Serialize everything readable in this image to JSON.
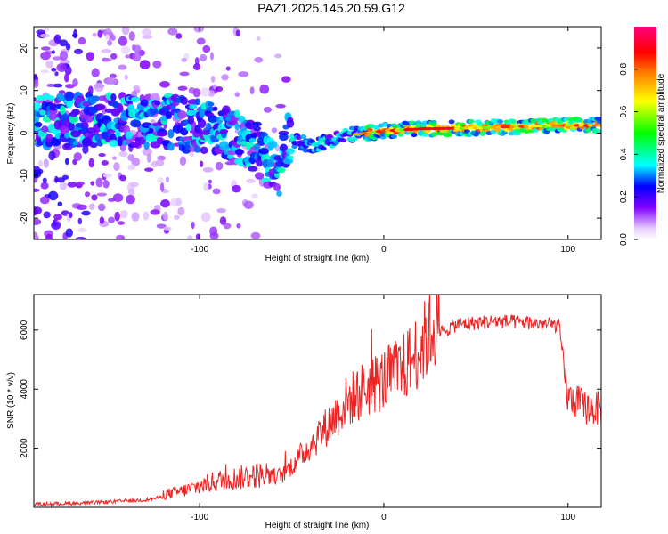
{
  "figure_title": "PAZ1.2025.145.20.59.G12",
  "chart_data": [
    {
      "type": "heatmap",
      "xlabel": "Height of straight line (km)",
      "ylabel": "Frequency (Hz)",
      "xlim": [
        -190,
        118
      ],
      "ylim": [
        -25,
        25
      ],
      "x_ticks": [
        -100,
        0,
        100
      ],
      "y_ticks": [
        -20,
        -10,
        0,
        10,
        20
      ],
      "colorbar": {
        "label": "Normalized spectral amplitude",
        "range": [
          0,
          1
        ],
        "ticks": [
          "0.0",
          "0.2",
          "0.4",
          "0.6",
          "0.8"
        ],
        "colors": [
          "#ffffff",
          "#e8d0ff",
          "#8000ff",
          "#0000ff",
          "#00ffff",
          "#00ff00",
          "#ffff00",
          "#ff8000",
          "#ff0000",
          "#ff0080"
        ]
      },
      "ridge": [
        {
          "x": -120,
          "y": 3.0
        },
        {
          "x": -90,
          "y": 1.0
        },
        {
          "x": -70,
          "y": -3.0
        },
        {
          "x": -57,
          "y": -10.0
        },
        {
          "x": -52,
          "y": -1.0
        },
        {
          "x": -40,
          "y": -3.0
        },
        {
          "x": -20,
          "y": -0.5
        },
        {
          "x": 0,
          "y": 0.5
        },
        {
          "x": 20,
          "y": 1.0
        },
        {
          "x": 50,
          "y": 1.2
        },
        {
          "x": 80,
          "y": 1.6
        },
        {
          "x": 100,
          "y": 1.8
        },
        {
          "x": 118,
          "y": 1.8
        }
      ]
    },
    {
      "type": "line",
      "xlabel": "Height of straight line (km)",
      "ylabel": "SNR (10 * v/v)",
      "xlim": [
        -190,
        118
      ],
      "ylim": [
        0,
        7200
      ],
      "x_ticks": [
        -100,
        0,
        100
      ],
      "y_ticks": [
        2000,
        4000,
        6000
      ],
      "series": [
        {
          "color": "#ee2222",
          "trend": [
            {
              "x": -190,
              "y": 100
            },
            {
              "x": -160,
              "y": 150
            },
            {
              "x": -130,
              "y": 250
            },
            {
              "x": -110,
              "y": 450
            },
            {
              "x": -90,
              "y": 750
            },
            {
              "x": -70,
              "y": 900
            },
            {
              "x": -55,
              "y": 1000
            },
            {
              "x": -42,
              "y": 1800
            },
            {
              "x": -30,
              "y": 2600
            },
            {
              "x": -20,
              "y": 3300
            },
            {
              "x": -10,
              "y": 3700
            },
            {
              "x": 0,
              "y": 4000
            },
            {
              "x": 10,
              "y": 4300
            },
            {
              "x": 20,
              "y": 5000
            },
            {
              "x": 30,
              "y": 5900
            },
            {
              "x": 40,
              "y": 6200
            },
            {
              "x": 60,
              "y": 6300
            },
            {
              "x": 80,
              "y": 6250
            },
            {
              "x": 95,
              "y": 6150
            },
            {
              "x": 100,
              "y": 3800
            },
            {
              "x": 104,
              "y": 3700
            },
            {
              "x": 110,
              "y": 3500
            },
            {
              "x": 118,
              "y": 3450
            }
          ]
        }
      ]
    }
  ]
}
